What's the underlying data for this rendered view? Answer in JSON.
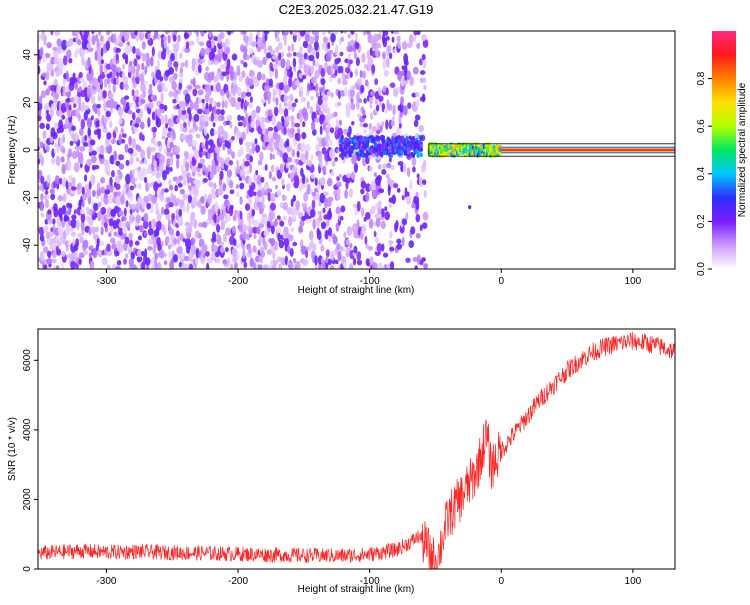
{
  "figure": {
    "title": "C2E3.2025.032.21.47.G19"
  },
  "chart_data": [
    {
      "type": "heatmap",
      "title": "C2E3.2025.032.21.47.G19",
      "xlabel": "Height of straight line (km)",
      "ylabel": "Frequency (Hz)",
      "xlim": [
        -352,
        132
      ],
      "ylim": [
        -50,
        50
      ],
      "x_ticks": [
        -300,
        -200,
        -100,
        0,
        100
      ],
      "x_tick_labels": [
        "-300",
        "-200",
        "-100",
        "0",
        "100"
      ],
      "y_ticks": [
        -40,
        -20,
        0,
        20,
        40
      ],
      "y_tick_labels": [
        "-40",
        "-20",
        "0",
        "20",
        "40"
      ],
      "grid": false,
      "colorbar": {
        "label": "Normalized spectral amplitude",
        "range": [
          0,
          1
        ],
        "ticks": [
          0.0,
          0.2,
          0.4,
          0.6,
          0.8
        ],
        "tick_labels": [
          "0.0",
          "0.2",
          "0.4",
          "0.6",
          "0.8"
        ],
        "colormap": "rainbow (white-violet-blue-cyan-green-yellow-red-magenta)",
        "colors": [
          "#ffffff",
          "#cc99ff",
          "#7a1cff",
          "#2a30ff",
          "#00c8ff",
          "#00e860",
          "#b0ff00",
          "#ffe000",
          "#ff8000",
          "#ff1818",
          "#ff2a80"
        ]
      },
      "regions": [
        {
          "x_range": [
            -352,
            -122
          ],
          "description": "broadband noise",
          "amplitude_level": 0.1
        },
        {
          "x_range": [
            -122,
            -60
          ],
          "description": "onset of tone near 0 Hz",
          "amplitude_level": 0.3
        },
        {
          "x_range": [
            -55,
            0
          ],
          "description": "tone emerging",
          "amplitude_level": 0.6
        },
        {
          "x_range": [
            0,
            132
          ],
          "description": "clean carrier at 0 Hz",
          "amplitude_level": 1.0
        }
      ],
      "line_frequency_hz": 0
    },
    {
      "type": "line",
      "xlabel": "Height of straight line (km)",
      "ylabel": "SNR (10 * v/v)",
      "xlim": [
        -352,
        132
      ],
      "ylim": [
        0,
        6900
      ],
      "x_ticks": [
        -300,
        -200,
        -100,
        0,
        100
      ],
      "x_tick_labels": [
        "-300",
        "-200",
        "-100",
        "0",
        "100"
      ],
      "y_ticks": [
        0,
        2000,
        4000,
        6000
      ],
      "y_tick_labels": [
        "0",
        "2000",
        "4000",
        "6000"
      ],
      "grid": false,
      "series": [
        {
          "color": "#ff2020",
          "x": [
            -352,
            -320,
            -300,
            -280,
            -250,
            -220,
            -200,
            -180,
            -150,
            -120,
            -100,
            -80,
            -70,
            -62,
            -56,
            -52,
            -48,
            -44,
            -40,
            -35,
            -30,
            -25,
            -20,
            -15,
            -12,
            -10,
            -8,
            -5,
            0,
            10,
            20,
            30,
            40,
            50,
            60,
            70,
            80,
            90,
            100,
            110,
            120,
            132
          ],
          "y": [
            450,
            520,
            480,
            500,
            470,
            450,
            430,
            410,
            390,
            380,
            420,
            550,
            750,
            950,
            600,
            250,
            350,
            1000,
            1500,
            1800,
            2100,
            2400,
            2700,
            3300,
            3800,
            3600,
            2900,
            3100,
            3400,
            3900,
            4400,
            4900,
            5300,
            5700,
            6000,
            6250,
            6400,
            6500,
            6550,
            6500,
            6400,
            6250
          ]
        }
      ]
    }
  ]
}
